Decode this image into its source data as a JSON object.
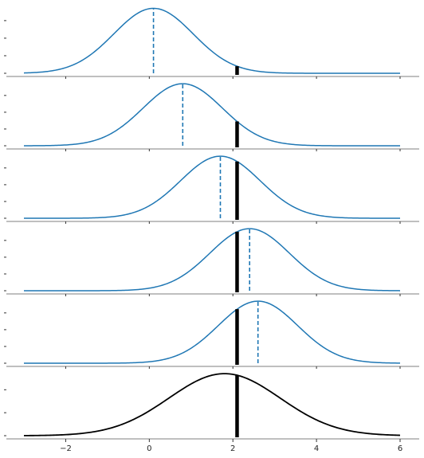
{
  "chart_data": {
    "type": "line",
    "title": "",
    "xlabel": "",
    "ylabel": "",
    "xlim": [
      -3.0,
      6.0
    ],
    "xticks": [
      -2,
      0,
      2,
      4,
      6
    ],
    "xtick_labels": [
      "−2",
      "0",
      "2",
      "4",
      "6"
    ],
    "observed_x": 2.1,
    "grid": false,
    "colors": {
      "density": "#1f77b4",
      "marginal": "#000000",
      "observed": "#000000"
    },
    "panels": [
      {
        "type": "density",
        "mean": 0.1,
        "sd": 0.95,
        "ylim_peak_fraction": 0.94,
        "yticks": 4
      },
      {
        "type": "density",
        "mean": 0.8,
        "sd": 0.95,
        "ylim_peak_fraction": 0.9,
        "yticks": 4
      },
      {
        "type": "density",
        "mean": 1.7,
        "sd": 0.95,
        "ylim_peak_fraction": 0.9,
        "yticks": 4
      },
      {
        "type": "density",
        "mean": 2.4,
        "sd": 0.95,
        "ylim_peak_fraction": 0.9,
        "yticks": 4
      },
      {
        "type": "density",
        "mean": 2.6,
        "sd": 0.95,
        "ylim_peak_fraction": 0.9,
        "yticks": 4
      },
      {
        "type": "marginal",
        "mean": 1.8,
        "sd": 1.33,
        "ylim_peak_fraction": 0.9,
        "yticks": 3
      }
    ]
  }
}
